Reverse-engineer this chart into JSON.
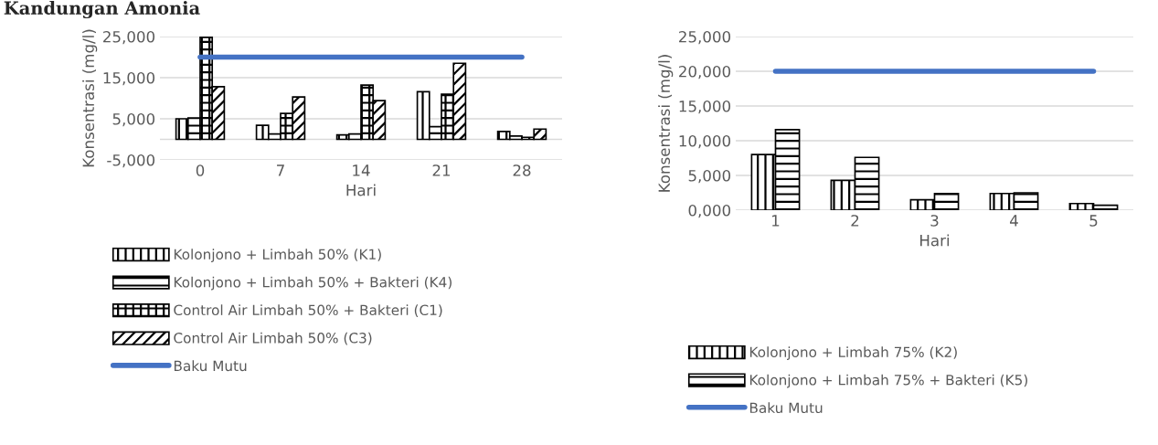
{
  "chart_data": [
    {
      "type": "bar",
      "title": "Kandungan Amonia",
      "xlabel": "Hari",
      "ylabel": "Konsentrasi (mg/l)",
      "categories": [
        "0",
        "7",
        "14",
        "21",
        "28"
      ],
      "series": [
        {
          "name": "Kolonjono + Limbah 50% (K1)",
          "color": "#000000",
          "values": [
            5000,
            3400,
            1100,
            11600,
            1900
          ]
        },
        {
          "name": "Kolonjono + Limbah 50% + Bakteri (K4)",
          "color": "#000000",
          "values": [
            5200,
            1300,
            1300,
            3100,
            800
          ]
        },
        {
          "name": "Control Air Limbah 50% + Bakteri (C1)",
          "color": "#000000",
          "values": [
            24800,
            6300,
            13200,
            11000,
            500
          ]
        },
        {
          "name": "Control Air Limbah 50% (C3)",
          "color": "#000000",
          "values": [
            12800,
            10300,
            9400,
            18500,
            2500
          ]
        },
        {
          "name": "Baku Mutu",
          "type": "line",
          "color": "#4472c4",
          "values": [
            20000,
            20000,
            20000,
            20000,
            20000
          ]
        }
      ],
      "ylim": [
        -5000,
        25000
      ],
      "yticks": [
        {
          "value": -5000,
          "label": "-5,000"
        },
        {
          "value": 5000,
          "label": "5,000"
        },
        {
          "value": 15000,
          "label": "15,000"
        },
        {
          "value": 25000,
          "label": "25,000"
        }
      ],
      "grid": "y",
      "legend": "bottom"
    },
    {
      "type": "bar",
      "xlabel": "Hari",
      "ylabel": "Konsentrasi (mg/l)",
      "categories": [
        "1",
        "2",
        "3",
        "4",
        "5"
      ],
      "series": [
        {
          "name": "Kolonjono + Limbah 75% (K2)",
          "color": "#000000",
          "values": [
            8000,
            4300,
            1500,
            2400,
            950
          ]
        },
        {
          "name": "Kolonjono + Limbah 75% + Bakteri (K5)",
          "color": "#000000",
          "values": [
            11600,
            7600,
            2400,
            2500,
            700
          ]
        },
        {
          "name": "Baku Mutu",
          "type": "line",
          "color": "#4472c4",
          "values": [
            20000,
            20000,
            20000,
            20000,
            20000
          ]
        }
      ],
      "ylim": [
        0,
        25000
      ],
      "yticks": [
        {
          "value": 0,
          "label": "0,000"
        },
        {
          "value": 5000,
          "label": "5,000"
        },
        {
          "value": 10000,
          "label": "10,000"
        },
        {
          "value": 15000,
          "label": "15,000"
        },
        {
          "value": 20000,
          "label": "20,000"
        },
        {
          "value": 25000,
          "label": "25,000"
        }
      ],
      "grid": "y",
      "legend": "bottom"
    }
  ]
}
